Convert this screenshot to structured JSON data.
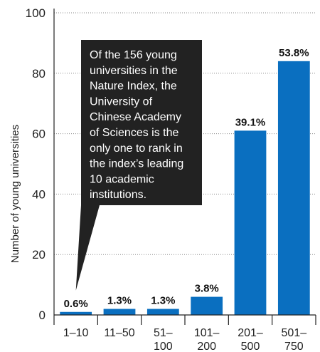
{
  "chart_data": {
    "type": "bar",
    "categories": [
      [
        "1–10"
      ],
      [
        "11–50"
      ],
      [
        "51–",
        "100"
      ],
      [
        "101–",
        "200"
      ],
      [
        "201–",
        "500"
      ],
      [
        "501–",
        "750"
      ]
    ],
    "values": [
      1,
      2,
      2,
      6,
      61,
      84
    ],
    "data_labels": [
      "0.6%",
      "1.3%",
      "1.3%",
      "3.8%",
      "39.1%",
      "53.8%"
    ],
    "ylabel": "Number of young universities",
    "yticks": [
      0,
      20,
      40,
      60,
      80,
      100
    ],
    "ylim": [
      0,
      100
    ],
    "grid": true,
    "bar_color": "#0a6fc0",
    "annotation": {
      "lines": [
        "Of the 156 young",
        "universities in the",
        "Nature Index, the",
        "University of",
        "Chinese Academy",
        "of Sciences is the",
        "only one to rank in",
        "the index’s leading",
        "10 academic",
        "institutions."
      ],
      "points_to_category": 0,
      "background": "#222222"
    }
  }
}
